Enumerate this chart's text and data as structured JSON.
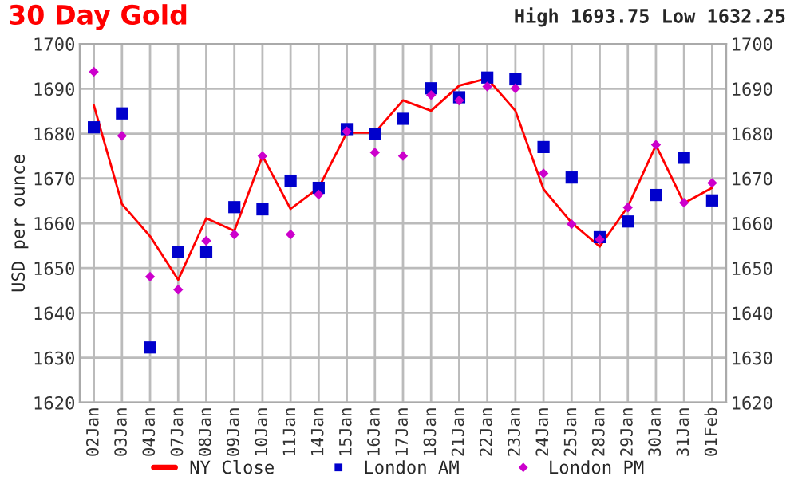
{
  "chart_data": {
    "type": "line",
    "title": "30 Day Gold",
    "subtitle": "High 1693.75 Low 1632.25",
    "ylabel": "USD per ounce",
    "categories": [
      "02Jan",
      "03Jan",
      "04Jan",
      "07Jan",
      "08Jan",
      "09Jan",
      "10Jan",
      "11Jan",
      "14Jan",
      "15Jan",
      "16Jan",
      "17Jan",
      "18Jan",
      "21Jan",
      "22Jan",
      "23Jan",
      "24Jan",
      "25Jan",
      "28Jan",
      "29Jan",
      "30Jan",
      "31Jan",
      "01Feb"
    ],
    "series": [
      {
        "name": "NY Close",
        "color": "#ff0000",
        "marker": "none",
        "values": [
          1686.3,
          1664.3,
          1657.1,
          1647.4,
          1661.1,
          1658.3,
          1675,
          1663.2,
          1667.9,
          1680.2,
          1680.2,
          1687.4,
          1685.1,
          1690.7,
          1692.3,
          1685.1,
          1667.6,
          1660.1,
          1654.8,
          1663.7,
          1677.4,
          1664.5,
          1667.9
        ]
      },
      {
        "name": "London AM",
        "type": "scatter",
        "color": "#0000cc",
        "marker": "square",
        "values": [
          1681.4,
          1684.5,
          1632.3,
          1653.6,
          1653.6,
          1663.6,
          1663.1,
          1669.5,
          1667.9,
          1681,
          1679.9,
          1683.3,
          1690.1,
          1688.1,
          1692.5,
          1692.1,
          1677,
          1670.2,
          1656.9,
          1660.4,
          1666.3,
          1674.6,
          1665.1
        ]
      },
      {
        "name": "London PM",
        "type": "scatter",
        "color": "#cc00cc",
        "marker": "diamond",
        "values": [
          1693.8,
          1679.5,
          1648.1,
          1645.2,
          1656.1,
          1657.5,
          1675,
          1657.5,
          1666.4,
          1680.5,
          1675.8,
          1675,
          1688.6,
          1687.4,
          1690.5,
          1690.1,
          1671.1,
          1659.8,
          1656.4,
          1663.5,
          1677.5,
          1664.6,
          1669
        ]
      }
    ],
    "ylim": [
      1620,
      1700
    ],
    "yticks": [
      1620,
      1630,
      1640,
      1650,
      1660,
      1670,
      1680,
      1690,
      1700
    ],
    "y2lim": [
      1620,
      1700
    ],
    "y2ticks": [
      1620,
      1630,
      1640,
      1650,
      1660,
      1670,
      1680,
      1690,
      1700
    ],
    "grid": true,
    "legend": "bottom"
  }
}
